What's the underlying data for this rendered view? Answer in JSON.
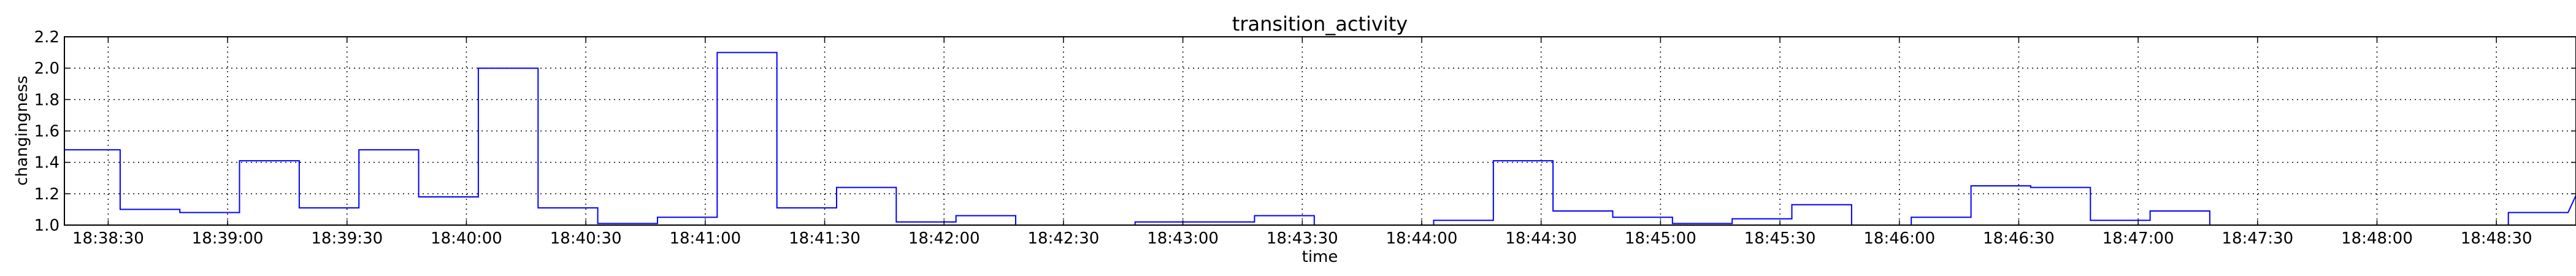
{
  "chart_data": {
    "type": "line",
    "title": "transition_activity",
    "xlabel": "time",
    "ylabel": "changingness",
    "x_ticks": [
      "18:38:30",
      "18:39:00",
      "18:39:30",
      "18:40:00",
      "18:40:30",
      "18:41:00",
      "18:41:30",
      "18:42:00",
      "18:42:30",
      "18:43:00",
      "18:43:30",
      "18:44:00",
      "18:44:30",
      "18:45:00",
      "18:45:30",
      "18:46:00",
      "18:46:30",
      "18:47:00",
      "18:47:30",
      "18:48:00",
      "18:48:30"
    ],
    "y_ticks": [
      "1.0",
      "1.2",
      "1.4",
      "1.6",
      "1.8",
      "2.0",
      "2.2"
    ],
    "ylim": [
      1.0,
      2.2
    ],
    "xlim": [
      "18:38:19",
      "18:48:50"
    ],
    "grid": true,
    "series": [
      {
        "color": "#0000ff",
        "x": [
          "18:38:19",
          "18:38:33",
          "18:38:33",
          "18:38:48",
          "18:38:48",
          "18:39:03",
          "18:39:03",
          "18:39:18",
          "18:39:18",
          "18:39:33",
          "18:39:33",
          "18:39:48",
          "18:39:48",
          "18:40:03",
          "18:40:03",
          "18:40:18",
          "18:40:18",
          "18:40:33",
          "18:40:33",
          "18:40:48",
          "18:40:48",
          "18:41:03",
          "18:41:03",
          "18:41:18",
          "18:41:18",
          "18:41:33",
          "18:41:33",
          "18:41:48",
          "18:41:48",
          "18:42:03",
          "18:42:03",
          "18:42:18",
          "18:42:18",
          "18:42:48",
          "18:42:48",
          "18:43:03",
          "18:43:03",
          "18:43:18",
          "18:43:18",
          "18:43:33",
          "18:43:33",
          "18:43:48",
          "18:43:48",
          "18:44:03",
          "18:44:03",
          "18:44:18",
          "18:44:18",
          "18:44:33",
          "18:44:33",
          "18:44:48",
          "18:44:48",
          "18:45:03",
          "18:45:03",
          "18:45:18",
          "18:45:18",
          "18:45:33",
          "18:45:33",
          "18:45:48",
          "18:45:48",
          "18:46:03",
          "18:46:03",
          "18:46:18",
          "18:46:18",
          "18:46:33",
          "18:46:33",
          "18:46:48",
          "18:46:48",
          "18:47:03",
          "18:47:03",
          "18:47:18",
          "18:47:18",
          "18:48:33",
          "18:48:33",
          "18:48:48",
          "18:48:50"
        ],
        "y": [
          1.48,
          1.48,
          1.1,
          1.1,
          1.08,
          1.08,
          1.41,
          1.41,
          1.11,
          1.11,
          1.48,
          1.48,
          1.18,
          1.18,
          2.0,
          2.0,
          1.11,
          1.11,
          1.01,
          1.01,
          1.05,
          1.05,
          2.1,
          2.1,
          1.11,
          1.11,
          1.24,
          1.24,
          1.02,
          1.02,
          1.06,
          1.06,
          1.0,
          1.0,
          1.02,
          1.02,
          1.02,
          1.02,
          1.06,
          1.06,
          1.0,
          1.0,
          1.0,
          1.0,
          1.03,
          1.03,
          1.41,
          1.41,
          1.09,
          1.09,
          1.05,
          1.05,
          1.01,
          1.01,
          1.04,
          1.04,
          1.13,
          1.13,
          1.0,
          1.0,
          1.05,
          1.05,
          1.25,
          1.25,
          1.24,
          1.24,
          1.03,
          1.03,
          1.09,
          1.09,
          1.0,
          1.0,
          1.08,
          1.08,
          1.19
        ]
      }
    ]
  }
}
